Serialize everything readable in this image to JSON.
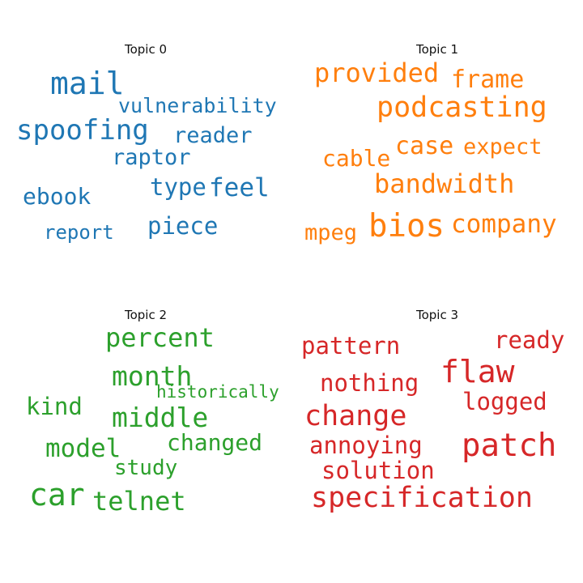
{
  "chart_data": {
    "type": "wordcloud",
    "panels": [
      {
        "title": "Topic 0",
        "color": "#1f77b4",
        "words": [
          "mail",
          "vulnerability",
          "spoofing",
          "reader",
          "raptor",
          "type",
          "feel",
          "ebook",
          "piece",
          "report"
        ]
      },
      {
        "title": "Topic 1",
        "color": "#ff7f0e",
        "words": [
          "provided",
          "frame",
          "podcasting",
          "case",
          "expect",
          "cable",
          "bandwidth",
          "bios",
          "company",
          "mpeg"
        ]
      },
      {
        "title": "Topic 2",
        "color": "#2ca02c",
        "words": [
          "percent",
          "month",
          "historically",
          "kind",
          "middle",
          "changed",
          "model",
          "study",
          "car",
          "telnet"
        ]
      },
      {
        "title": "Topic 3",
        "color": "#d62728",
        "words": [
          "pattern",
          "ready",
          "flaw",
          "nothing",
          "logged",
          "change",
          "patch",
          "annoying",
          "solution",
          "specification"
        ]
      }
    ]
  }
}
